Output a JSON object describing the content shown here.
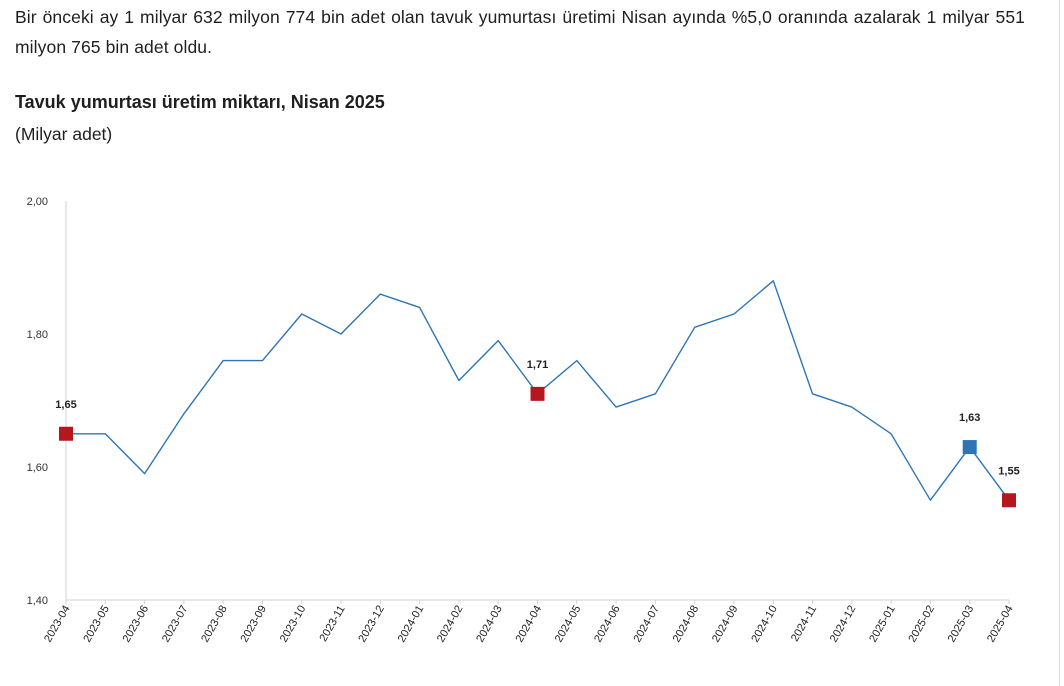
{
  "intro_text": "Bir önceki ay 1 milyar 632 milyon 774 bin adet olan tavuk yumurtası üretimi Nisan ayında %5,0 oranında azalarak 1 milyar 551 milyon 765 bin adet oldu.",
  "chart_data": {
    "type": "line",
    "title": "Tavuk yumurtası üretim miktarı, Nisan 2025",
    "subtitle": "(Milyar adet)",
    "categories": [
      "2023-04",
      "2023-05",
      "2023-06",
      "2023-07",
      "2023-08",
      "2023-09",
      "2023-10",
      "2023-11",
      "2023-12",
      "2024-01",
      "2024-02",
      "2024-03",
      "2024-04",
      "2024-05",
      "2024-06",
      "2024-07",
      "2024-08",
      "2024-09",
      "2024-10",
      "2024-11",
      "2024-12",
      "2025-01",
      "2025-02",
      "2025-03",
      "2025-04"
    ],
    "values": [
      1.65,
      1.65,
      1.59,
      1.68,
      1.76,
      1.76,
      1.83,
      1.8,
      1.86,
      1.84,
      1.73,
      1.79,
      1.71,
      1.76,
      1.69,
      1.71,
      1.81,
      1.83,
      1.88,
      1.71,
      1.69,
      1.65,
      1.55,
      1.63,
      1.55
    ],
    "ylim": [
      1.4,
      2.0
    ],
    "yticks": [
      "1,40",
      "1,60",
      "1,80",
      "2,00"
    ],
    "ytick_values": [
      1.4,
      1.6,
      1.8,
      2.0
    ],
    "grid": false,
    "line_color": "#2e75b6",
    "markers": [
      {
        "index": 0,
        "label": "1,65",
        "color": "#b5171e"
      },
      {
        "index": 12,
        "label": "1,71",
        "color": "#b5171e"
      },
      {
        "index": 23,
        "label": "1,63",
        "color": "#2e75b6"
      },
      {
        "index": 24,
        "label": "1,55",
        "color": "#b5171e"
      }
    ]
  }
}
